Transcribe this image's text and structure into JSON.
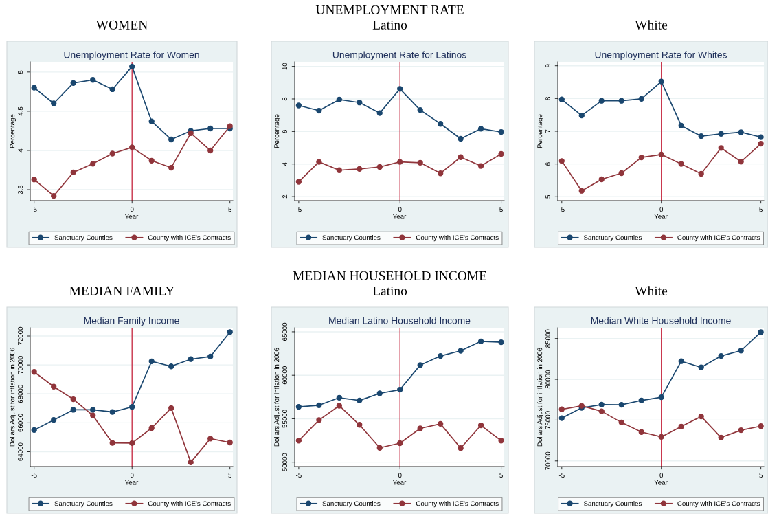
{
  "chart_data": [
    {
      "type": "line",
      "title": "Unemployment Rate for Women",
      "subtitle": "WOMEN",
      "xlabel": "Year",
      "ylabel": "Percentage",
      "x": [
        -5,
        -4,
        -3,
        -2,
        -1,
        0,
        1,
        2,
        3,
        4,
        5
      ],
      "series": [
        {
          "name": "Sanctuary Counties",
          "color": "#1a476f",
          "values": [
            4.8,
            4.6,
            4.86,
            4.9,
            4.78,
            5.07,
            4.37,
            4.14,
            4.25,
            4.28,
            4.28
          ]
        },
        {
          "name": "County with ICE's Contracts",
          "color": "#90353b",
          "values": [
            3.63,
            3.42,
            3.72,
            3.83,
            3.96,
            4.04,
            3.87,
            3.78,
            4.22,
            4.0,
            4.31
          ]
        }
      ],
      "xlim": [
        -5.2,
        5.15
      ],
      "xticks": [
        -5,
        0,
        5
      ],
      "ylim": [
        3.36,
        5.13
      ],
      "yticks": [
        3.5,
        4,
        4.5,
        5
      ],
      "ref_lines": [
        {
          "axis": "x",
          "value": 0,
          "color": "#c8334a"
        }
      ],
      "grid": "y",
      "legend": "bottom",
      "marker": "circle",
      "line_style": "solid"
    },
    {
      "type": "line",
      "title": "Unemployment Rate for Latinos",
      "subtitle": "Latino",
      "annotations": [
        "UNEMPLOYMENT RATE"
      ],
      "xlabel": "Year",
      "ylabel": "Percentage",
      "x": [
        -5,
        -4,
        -3,
        -2,
        -1,
        0,
        1,
        2,
        3,
        4,
        5
      ],
      "series": [
        {
          "name": "Sanctuary Counties",
          "color": "#1a476f",
          "values": [
            7.6,
            7.28,
            7.96,
            7.78,
            7.13,
            8.62,
            7.32,
            6.47,
            5.55,
            6.17,
            5.97
          ]
        },
        {
          "name": "County with ICE's Contracts",
          "color": "#90353b",
          "values": [
            2.91,
            4.13,
            3.62,
            3.7,
            3.82,
            4.13,
            4.08,
            3.43,
            4.42,
            3.88,
            4.62
          ]
        }
      ],
      "xlim": [
        -5.2,
        5.15
      ],
      "xticks": [
        -5,
        0,
        5
      ],
      "ylim": [
        1.75,
        10.28
      ],
      "yticks": [
        2,
        4,
        6,
        8,
        10
      ],
      "ref_lines": [
        {
          "axis": "x",
          "value": 0,
          "color": "#c8334a"
        }
      ],
      "grid": "y",
      "legend": "bottom",
      "marker": "circle",
      "line_style": "solid"
    },
    {
      "type": "line",
      "title": "Unemployment Rate for Whites",
      "subtitle": "White",
      "xlabel": "Year",
      "ylabel": "Percentage",
      "x": [
        -5,
        -4,
        -3,
        -2,
        -1,
        0,
        1,
        2,
        3,
        4,
        5
      ],
      "series": [
        {
          "name": "Sanctuary Counties",
          "color": "#1a476f",
          "values": [
            7.97,
            7.48,
            7.93,
            7.93,
            7.99,
            8.52,
            7.17,
            6.85,
            6.92,
            6.97,
            6.82
          ]
        },
        {
          "name": "County with ICE's Contracts",
          "color": "#90353b",
          "values": [
            6.09,
            5.18,
            5.53,
            5.72,
            6.2,
            6.29,
            6.0,
            5.7,
            6.49,
            6.07,
            6.62
          ]
        }
      ],
      "xlim": [
        -5.2,
        5.15
      ],
      "xticks": [
        -5,
        0,
        5
      ],
      "ylim": [
        4.88,
        9.12
      ],
      "yticks": [
        5,
        6,
        7,
        8,
        9
      ],
      "ref_lines": [
        {
          "axis": "x",
          "value": 0,
          "color": "#c8334a"
        }
      ],
      "grid": "y",
      "legend": "bottom",
      "marker": "circle",
      "line_style": "solid"
    },
    {
      "type": "line",
      "title": "Median Family Income",
      "subtitle": "MEDIAN FAMILY",
      "xlabel": "Year",
      "ylabel": "Dollars Adjust for inflation in 2006",
      "x": [
        -5,
        -4,
        -3,
        -2,
        -1,
        0,
        1,
        2,
        3,
        4,
        5
      ],
      "series": [
        {
          "name": "Sanctuary Counties",
          "color": "#1a476f",
          "values": [
            65500,
            66200,
            66900,
            66900,
            66750,
            67100,
            70250,
            69900,
            70400,
            70580,
            72270
          ]
        },
        {
          "name": "County with ICE's Contracts",
          "color": "#90353b",
          "values": [
            69520,
            68500,
            67630,
            66510,
            64610,
            64600,
            65640,
            67020,
            63270,
            64910,
            64640
          ]
        }
      ],
      "xlim": [
        -5.2,
        5.15
      ],
      "xticks": [
        -5,
        0,
        5
      ],
      "ylim": [
        62980,
        72570
      ],
      "yticks": [
        64000,
        66000,
        68000,
        70000,
        72000
      ],
      "ref_lines": [
        {
          "axis": "x",
          "value": 0,
          "color": "#c8334a"
        }
      ],
      "grid": "y",
      "legend": "bottom",
      "marker": "circle",
      "line_style": "solid"
    },
    {
      "type": "line",
      "title": "Median Latino Household Income",
      "subtitle": "Latino",
      "annotations": [
        "MEDIAN HOUSEHOLD INCOME"
      ],
      "xlabel": "Year",
      "ylabel": "Dollars Adjust for inflation in 2006",
      "x": [
        -5,
        -4,
        -3,
        -2,
        -1,
        0,
        1,
        2,
        3,
        4,
        5
      ],
      "series": [
        {
          "name": "Sanctuary Counties",
          "color": "#1a476f",
          "values": [
            56370,
            56550,
            57420,
            57100,
            57920,
            58350,
            61170,
            62220,
            62820,
            63900,
            63800
          ]
        },
        {
          "name": "County with ICE's Contracts",
          "color": "#90353b",
          "values": [
            52480,
            54850,
            56500,
            54300,
            51650,
            52190,
            53890,
            54410,
            51620,
            54240,
            52480
          ]
        }
      ],
      "xlim": [
        -5.2,
        5.15
      ],
      "xticks": [
        -5,
        0,
        5
      ],
      "ylim": [
        49500,
        65470
      ],
      "yticks": [
        50000,
        55000,
        60000,
        65000
      ],
      "ref_lines": [
        {
          "axis": "x",
          "value": 0,
          "color": "#c8334a"
        }
      ],
      "grid": "y",
      "legend": "bottom",
      "marker": "circle",
      "line_style": "solid"
    },
    {
      "type": "line",
      "title": "Median White Household Income",
      "subtitle": "White",
      "xlabel": "Year",
      "ylabel": "Dollars Adjust for inflation in 2006",
      "x": [
        -5,
        -4,
        -3,
        -2,
        -1,
        0,
        1,
        2,
        3,
        4,
        5
      ],
      "series": [
        {
          "name": "Sanctuary Counties",
          "color": "#1a476f",
          "values": [
            75240,
            76510,
            76900,
            76880,
            77410,
            77800,
            82220,
            81460,
            82860,
            83520,
            85770
          ]
        },
        {
          "name": "County with ICE's Contracts",
          "color": "#90353b",
          "values": [
            76320,
            76750,
            76080,
            74710,
            73540,
            72940,
            74210,
            75450,
            72860,
            73760,
            74260
          ]
        }
      ],
      "xlim": [
        -5.2,
        5.15
      ],
      "xticks": [
        -5,
        0,
        5
      ],
      "ylim": [
        69310,
        86320
      ],
      "yticks": [
        70000,
        75000,
        80000,
        85000
      ],
      "ref_lines": [
        {
          "axis": "x",
          "value": 0,
          "color": "#c8334a"
        }
      ],
      "grid": "y",
      "legend": "bottom",
      "marker": "circle",
      "line_style": "solid"
    }
  ]
}
